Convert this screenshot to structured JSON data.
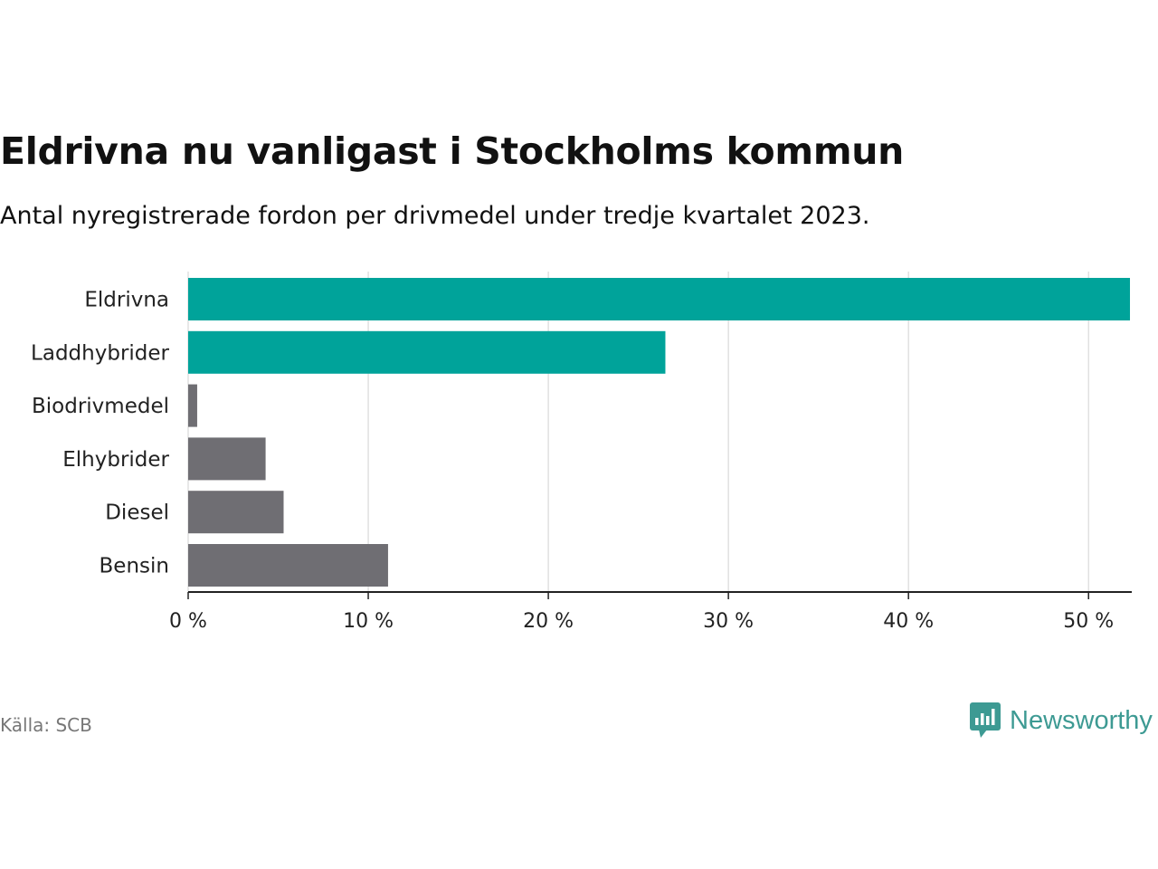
{
  "header": {
    "title": "Eldrivna nu vanligast i Stockholms kommun",
    "subtitle": "Antal nyregistrerade fordon per drivmedel under tredje kvartalet 2023."
  },
  "footer": {
    "source": "Källa: SCB",
    "brand": "Newsworthy",
    "brand_icon": "newsworthy-logo-icon"
  },
  "colors": {
    "highlight": "#00a39a",
    "neutral": "#6f6e73",
    "grid": "#d9d9d9",
    "axis": "#222222",
    "brand": "#3d9a93"
  },
  "chart_data": {
    "type": "bar",
    "orientation": "horizontal",
    "title": "Eldrivna nu vanligast i Stockholms kommun",
    "subtitle": "Antal nyregistrerade fordon per drivmedel under tredje kvartalet 2023.",
    "xlabel": "",
    "ylabel": "",
    "categories": [
      "Eldrivna",
      "Laddhybrider",
      "Biodrivmedel",
      "Elhybrider",
      "Diesel",
      "Bensin"
    ],
    "values": [
      52.3,
      26.5,
      0.5,
      4.3,
      5.3,
      11.1
    ],
    "highlighted": [
      true,
      true,
      false,
      false,
      false,
      false
    ],
    "xlim": [
      0,
      52.4
    ],
    "ticks": [
      0,
      10,
      20,
      30,
      40,
      50
    ],
    "tick_labels": [
      "0 %",
      "10 %",
      "20 %",
      "30 %",
      "40 %",
      "50 %"
    ],
    "grid": true,
    "unit": "%"
  }
}
